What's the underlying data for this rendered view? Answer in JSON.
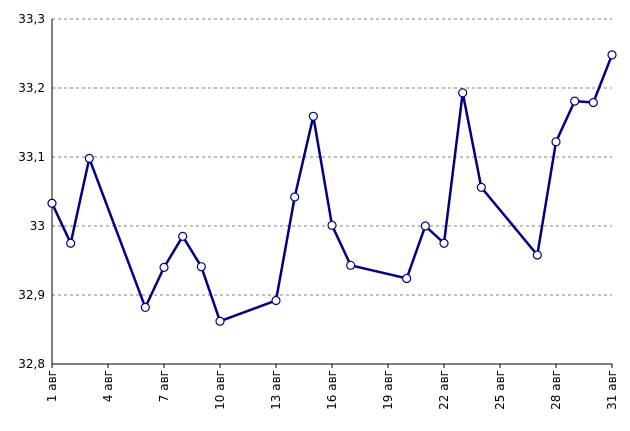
{
  "chart_data": {
    "type": "line",
    "title": "",
    "xlabel": "",
    "ylabel": "",
    "xlim": [
      1,
      31
    ],
    "ylim": [
      32.8,
      33.3
    ],
    "y_ticks": [
      {
        "value": 32.8,
        "label": "32,8"
      },
      {
        "value": 32.9,
        "label": "32,9"
      },
      {
        "value": 33.0,
        "label": "33"
      },
      {
        "value": 33.1,
        "label": "33,1"
      },
      {
        "value": 33.2,
        "label": "33,2"
      },
      {
        "value": 33.3,
        "label": "33,3"
      }
    ],
    "x_ticks": [
      {
        "value": 1,
        "label": "1 авг"
      },
      {
        "value": 4,
        "label": "4 авг"
      },
      {
        "value": 7,
        "label": "7 авг"
      },
      {
        "value": 10,
        "label": "10 авг"
      },
      {
        "value": 13,
        "label": "13 авг"
      },
      {
        "value": 16,
        "label": "16 авг"
      },
      {
        "value": 19,
        "label": "19 авг"
      },
      {
        "value": 22,
        "label": "22 авг"
      },
      {
        "value": 25,
        "label": "25 авг"
      },
      {
        "value": 28,
        "label": "28 авг"
      },
      {
        "value": 31,
        "label": "31 авг"
      }
    ],
    "grid": "horizontal-dashed",
    "legend": "none",
    "colors": {
      "line": "#000080",
      "marker_fill": "#ffffff",
      "grid": "#808080",
      "axis": "#000000"
    },
    "series": [
      {
        "x": [
          1,
          2,
          3,
          6,
          7,
          8,
          9,
          10,
          13,
          14,
          15,
          16,
          17,
          20,
          21,
          22,
          23,
          24,
          27,
          28,
          29,
          30,
          31
        ],
        "values": [
          33.033,
          32.975,
          33.098,
          32.882,
          32.94,
          32.985,
          32.941,
          32.862,
          32.892,
          33.042,
          33.159,
          33.001,
          32.943,
          32.924,
          33.0,
          32.975,
          33.193,
          33.056,
          32.958,
          33.122,
          33.181,
          33.179,
          33.248
        ]
      }
    ]
  }
}
